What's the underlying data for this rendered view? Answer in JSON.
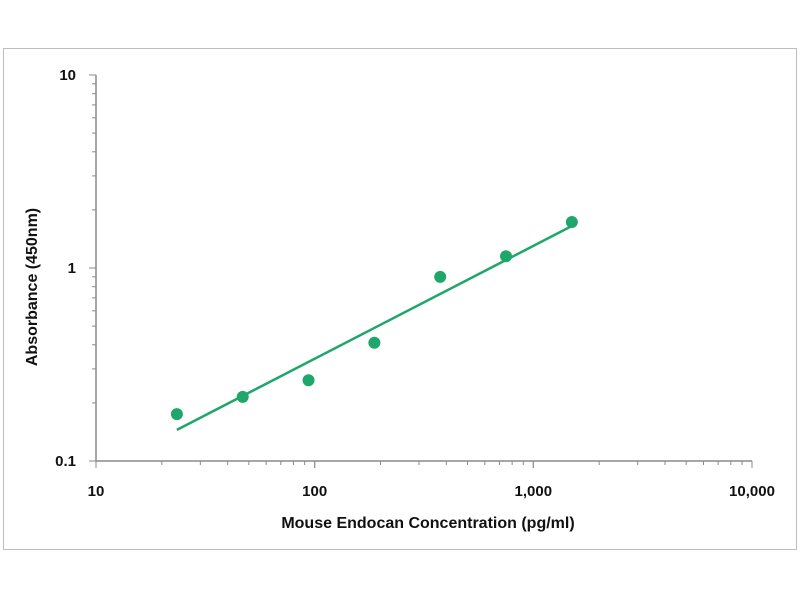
{
  "chart_data": {
    "type": "scatter",
    "title": "",
    "xlabel": "Mouse Endocan Concentration (pg/ml)",
    "ylabel": "Absorbance (450nm)",
    "x_scale": "log",
    "y_scale": "log",
    "xlim": [
      10,
      10000
    ],
    "ylim": [
      0.1,
      10
    ],
    "x_ticks": [
      {
        "value": 10,
        "label": "10"
      },
      {
        "value": 100,
        "label": "100"
      },
      {
        "value": 1000,
        "label": "1,000"
      },
      {
        "value": 10000,
        "label": "10,000"
      }
    ],
    "y_ticks": [
      {
        "value": 0.1,
        "label": "0.1"
      },
      {
        "value": 1,
        "label": "1"
      },
      {
        "value": 10,
        "label": "10"
      }
    ],
    "grid": false,
    "legend": "none",
    "series": [
      {
        "type": "scatter",
        "color": "#1fa66a",
        "x": [
          23.44,
          46.88,
          93.75,
          187.5,
          375,
          750,
          1500
        ],
        "y": [
          0.175,
          0.215,
          0.262,
          0.41,
          0.9,
          1.15,
          1.73
        ]
      },
      {
        "type": "line",
        "color": "#1fa66a",
        "x": [
          23.44,
          1500
        ],
        "y": [
          0.145,
          1.65
        ]
      }
    ]
  }
}
